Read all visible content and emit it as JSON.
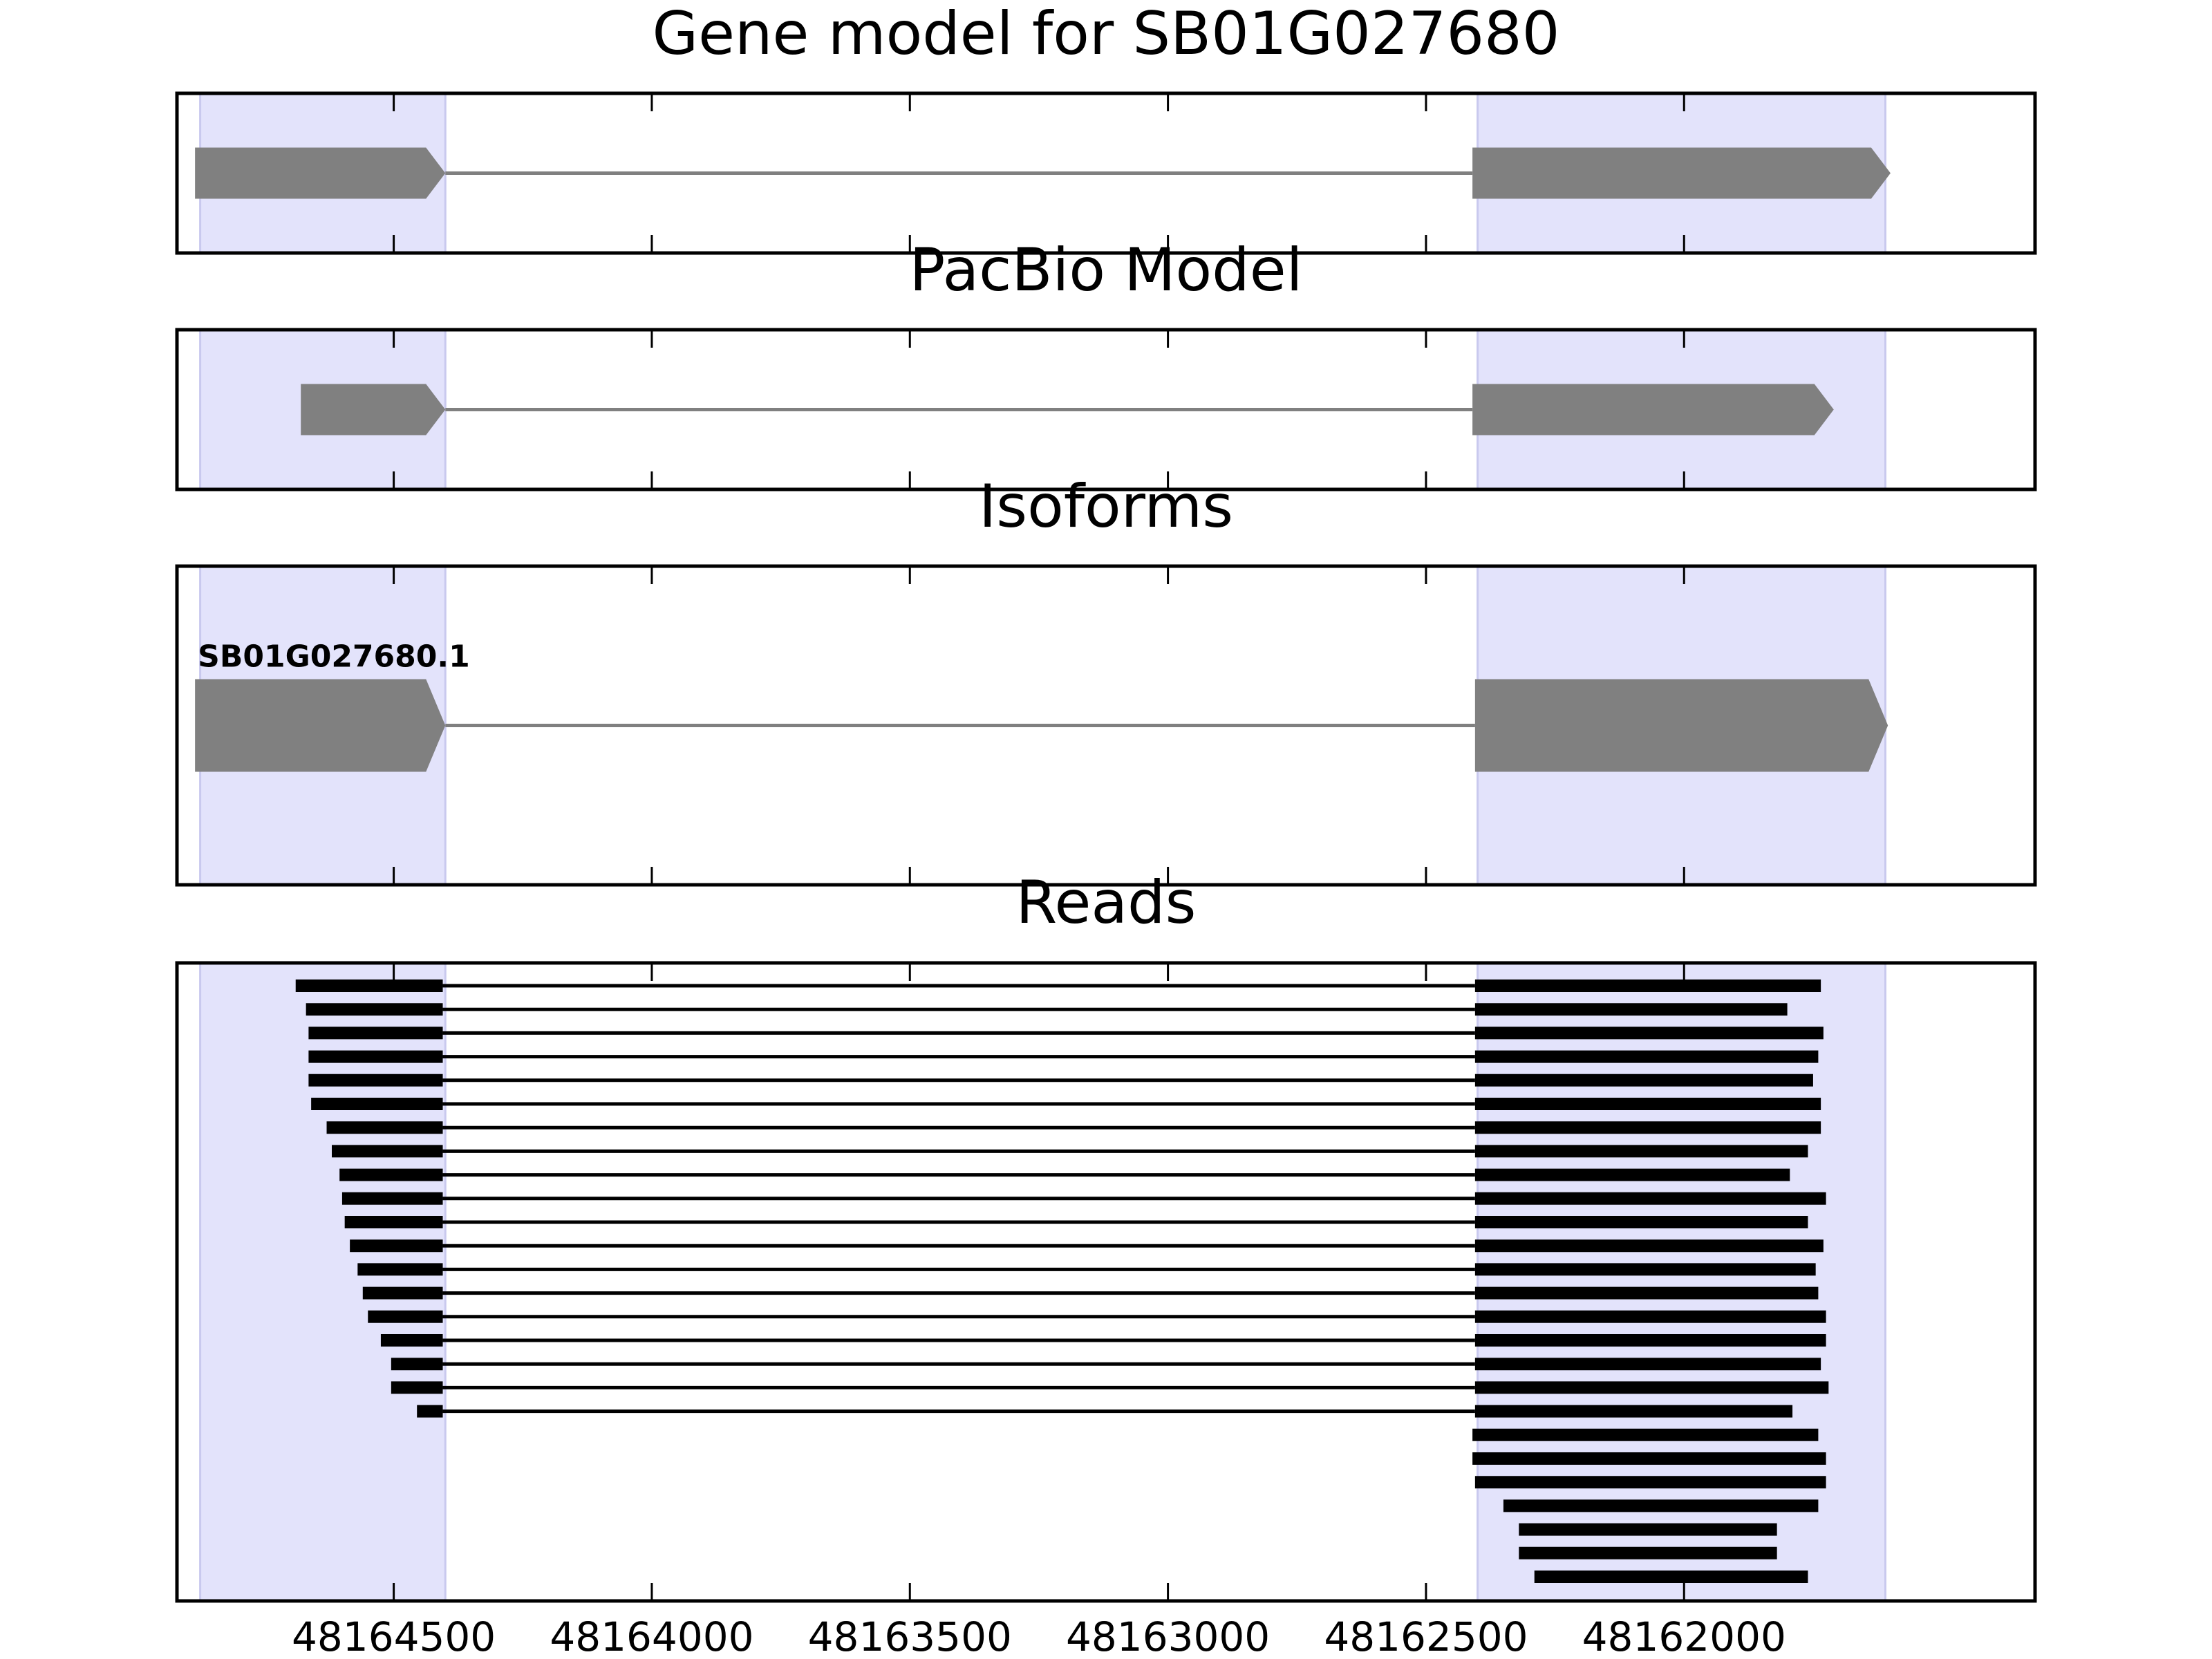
{
  "chart_data": {
    "type": "gene_model_tracks",
    "x_axis": {
      "reversed": true,
      "xlim": [
        48164920,
        48161320
      ],
      "ticks": [
        48164500,
        48164000,
        48163500,
        48163000,
        48162500,
        48162000
      ],
      "tick_labels": [
        "48164500",
        "48164000",
        "48163500",
        "48163000",
        "48162500",
        "48162000"
      ]
    },
    "colors": {
      "exon": "#808080",
      "intron_line": "#808080",
      "read": "#000000",
      "highlight": "#e3e3fb",
      "highlight_edge": "#c9c9ee",
      "frame": "#000000"
    },
    "highlight_regions": [
      [
        48164875,
        48164400
      ],
      [
        48162400,
        48161610
      ]
    ],
    "panels": [
      {
        "title": "Gene model for SB01G027680",
        "features": [
          {
            "exons": [
              [
                48164885,
                48164400
              ],
              [
                48162410,
                48161600
              ]
            ],
            "arrow": true
          }
        ]
      },
      {
        "title": "PacBio Model",
        "features": [
          {
            "exons": [
              [
                48164680,
                48164400
              ],
              [
                48162410,
                48161710
              ]
            ],
            "arrow": true
          }
        ]
      },
      {
        "title": "Isoforms",
        "features": [
          {
            "label": "SB01G027680.1",
            "exons": [
              [
                48164885,
                48164400
              ],
              [
                48162405,
                48161605
              ]
            ],
            "arrow": true
          }
        ]
      },
      {
        "title": "Reads",
        "reads": [
          {
            "exons": [
              [
                48164690,
                48164405
              ],
              [
                48162405,
                48161735
              ]
            ]
          },
          {
            "exons": [
              [
                48164670,
                48164405
              ],
              [
                48162405,
                48161800
              ]
            ]
          },
          {
            "exons": [
              [
                48164665,
                48164405
              ],
              [
                48162405,
                48161730
              ]
            ]
          },
          {
            "exons": [
              [
                48164665,
                48164405
              ],
              [
                48162405,
                48161740
              ]
            ]
          },
          {
            "exons": [
              [
                48164665,
                48164405
              ],
              [
                48162405,
                48161750
              ]
            ]
          },
          {
            "exons": [
              [
                48164660,
                48164405
              ],
              [
                48162405,
                48161735
              ]
            ]
          },
          {
            "exons": [
              [
                48164630,
                48164405
              ],
              [
                48162405,
                48161735
              ]
            ]
          },
          {
            "exons": [
              [
                48164620,
                48164405
              ],
              [
                48162405,
                48161760
              ]
            ]
          },
          {
            "exons": [
              [
                48164605,
                48164405
              ],
              [
                48162405,
                48161795
              ]
            ]
          },
          {
            "exons": [
              [
                48164600,
                48164405
              ],
              [
                48162405,
                48161725
              ]
            ]
          },
          {
            "exons": [
              [
                48164595,
                48164405
              ],
              [
                48162405,
                48161760
              ]
            ]
          },
          {
            "exons": [
              [
                48164585,
                48164405
              ],
              [
                48162405,
                48161730
              ]
            ]
          },
          {
            "exons": [
              [
                48164570,
                48164405
              ],
              [
                48162405,
                48161745
              ]
            ]
          },
          {
            "exons": [
              [
                48164560,
                48164405
              ],
              [
                48162405,
                48161740
              ]
            ]
          },
          {
            "exons": [
              [
                48164550,
                48164405
              ],
              [
                48162405,
                48161725
              ]
            ]
          },
          {
            "exons": [
              [
                48164525,
                48164405
              ],
              [
                48162405,
                48161725
              ]
            ]
          },
          {
            "exons": [
              [
                48164505,
                48164405
              ],
              [
                48162405,
                48161735
              ]
            ]
          },
          {
            "exons": [
              [
                48164505,
                48164405
              ],
              [
                48162405,
                48161720
              ]
            ]
          },
          {
            "exons": [
              [
                48164455,
                48164405
              ],
              [
                48162405,
                48161790
              ]
            ]
          },
          {
            "exons": [
              [
                48162410,
                48161740
              ]
            ]
          },
          {
            "exons": [
              [
                48162410,
                48161725
              ]
            ]
          },
          {
            "exons": [
              [
                48162405,
                48161725
              ]
            ]
          },
          {
            "exons": [
              [
                48162350,
                48161740
              ]
            ]
          },
          {
            "exons": [
              [
                48162320,
                48161820
              ]
            ]
          },
          {
            "exons": [
              [
                48162320,
                48161820
              ]
            ]
          },
          {
            "exons": [
              [
                48162290,
                48161760
              ]
            ]
          }
        ]
      }
    ]
  }
}
